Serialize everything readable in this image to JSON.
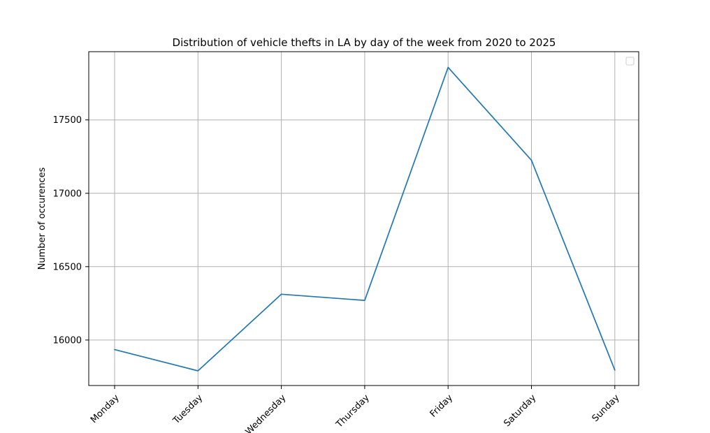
{
  "chart_data": {
    "type": "line",
    "title": "Distribution of vehicle thefts in LA by day of the week from 2020 to 2025",
    "xlabel": "",
    "ylabel": "Number of occurences",
    "categories": [
      "Monday",
      "Tuesday",
      "Wednesday",
      "Thursday",
      "Friday",
      "Saturday",
      "Sunday"
    ],
    "series": [
      {
        "values": [
          15935,
          15790,
          16312,
          16270,
          17858,
          17225,
          15795
        ]
      }
    ],
    "y_ticks": [
      16000,
      16500,
      17000,
      17500
    ],
    "ylim": [
      15690,
      17965
    ],
    "grid": true,
    "legend_placement": "top-right",
    "colors": {
      "line": "#1f77b4",
      "grid": "#b0b0b0",
      "axes": "#000000"
    }
  }
}
